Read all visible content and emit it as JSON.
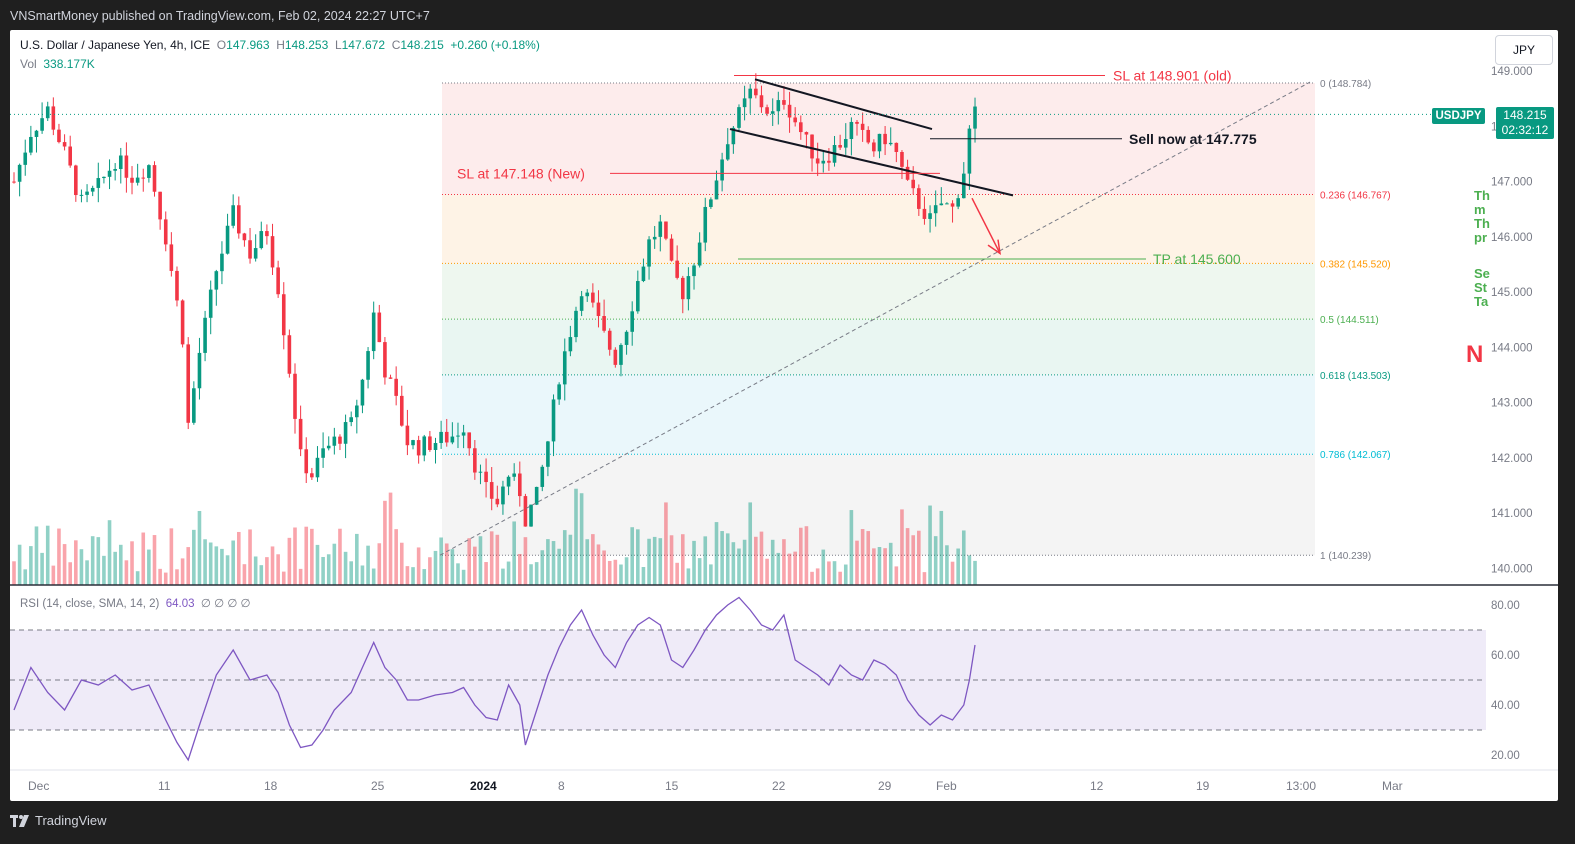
{
  "header": {
    "published": "VNSmartMoney published on TradingView.com, Feb 02, 2024 22:27 UTC+7"
  },
  "footer": {
    "brand": "TradingView"
  },
  "legend": {
    "symbol": "U.S. Dollar / Japanese Yen, 4h, ICE",
    "o_label": "O",
    "o": "147.963",
    "h_label": "H",
    "h": "148.253",
    "l_label": "L",
    "l": "147.672",
    "c_label": "C",
    "c": "148.215",
    "change": "+0.260 (+0.18%)",
    "vol_label": "Vol",
    "vol": "338.177K"
  },
  "currency_button": "JPY",
  "last_price": {
    "symbol": "USDJPY",
    "price": "148.215",
    "countdown": "02:32:12"
  },
  "rsi_legend": {
    "label": "RSI (14, close, SMA, 14, 2)",
    "value": "64.03",
    "extras": "∅  ∅  ∅  ∅"
  },
  "colors": {
    "up": "#089981",
    "down": "#f23645",
    "rsi": "#7e57c2",
    "annotation_red": "#f23645",
    "annotation_green": "#4caf50"
  },
  "annotations": {
    "sl_old": "SL at 148.901 (old)",
    "sl_new": "SL at 147.148 (New)",
    "sell": "Sell now at 147.775",
    "tp": "TP at 145.600",
    "right_note_lines": [
      "Th",
      "m",
      "Th",
      "pr",
      "Se",
      "St",
      "Ta"
    ],
    "right_big": "N"
  },
  "chart_data": {
    "type": "candlestick",
    "ylim": [
      139.7,
      149.2
    ],
    "y_ticks": [
      "149.000",
      "148.000",
      "147.000",
      "146.000",
      "145.000",
      "144.000",
      "143.000",
      "142.000",
      "141.000",
      "140.000"
    ],
    "x_ticks": [
      "Dec",
      "11",
      "18",
      "25",
      "2024",
      "8",
      "15",
      "22",
      "29",
      "Feb",
      "12",
      "19",
      "13:00",
      "Mar"
    ],
    "fib_levels": [
      {
        "ratio": "0",
        "label": "0 (148.784)",
        "price": 148.784,
        "color": "#787b86",
        "fill": "#fdecec"
      },
      {
        "ratio": "0.236",
        "label": "0.236 (146.767)",
        "price": 146.767,
        "color": "#f23645",
        "fill": "#fef3e6"
      },
      {
        "ratio": "0.382",
        "label": "0.382 (145.520)",
        "price": 145.52,
        "color": "#ff9800",
        "fill": "#eef7ef"
      },
      {
        "ratio": "0.5",
        "label": "0.5 (144.511)",
        "price": 144.511,
        "color": "#4caf50",
        "fill": "#e9f6f2"
      },
      {
        "ratio": "0.618",
        "label": "0.618 (143.503)",
        "price": 143.503,
        "color": "#089981",
        "fill": "#eaf7fb"
      },
      {
        "ratio": "0.786",
        "label": "0.786 (142.067)",
        "price": 142.067,
        "color": "#00bcd4",
        "fill": "#f4f4f4"
      },
      {
        "ratio": "1",
        "label": "1 (140.239)",
        "price": 140.239,
        "color": "#787b86",
        "fill": null
      }
    ],
    "close_path": [
      [
        0,
        147.0
      ],
      [
        3,
        147.9
      ],
      [
        6,
        148.3
      ],
      [
        9,
        147.5
      ],
      [
        12,
        146.6
      ],
      [
        15,
        146.9
      ],
      [
        18,
        147.4
      ],
      [
        21,
        147.1
      ],
      [
        24,
        147.3
      ],
      [
        27,
        146.0
      ],
      [
        30,
        144.2
      ],
      [
        31,
        142.6
      ],
      [
        33,
        143.9
      ],
      [
        36,
        145.4
      ],
      [
        39,
        146.4
      ],
      [
        42,
        145.7
      ],
      [
        45,
        146.1
      ],
      [
        47,
        145.1
      ],
      [
        49,
        143.6
      ],
      [
        51,
        142.0
      ],
      [
        53,
        141.7
      ],
      [
        55,
        142.1
      ],
      [
        57,
        142.3
      ],
      [
        60,
        142.6
      ],
      [
        62,
        143.4
      ],
      [
        64,
        144.6
      ],
      [
        66,
        143.6
      ],
      [
        68,
        143.0
      ],
      [
        70,
        142.3
      ],
      [
        72,
        142.2
      ],
      [
        75,
        142.3
      ],
      [
        78,
        142.4
      ],
      [
        80,
        142.6
      ],
      [
        82,
        141.9
      ],
      [
        84,
        141.4
      ],
      [
        86,
        141.2
      ],
      [
        88,
        141.7
      ],
      [
        90,
        141.4
      ],
      [
        91,
        140.9
      ],
      [
        93,
        141.3
      ],
      [
        95,
        142.3
      ],
      [
        97,
        143.5
      ],
      [
        99,
        144.3
      ],
      [
        101,
        145.1
      ],
      [
        103,
        144.7
      ],
      [
        105,
        144.2
      ],
      [
        107,
        143.8
      ],
      [
        109,
        144.4
      ],
      [
        111,
        145.2
      ],
      [
        113,
        145.9
      ],
      [
        115,
        146.2
      ],
      [
        117,
        145.4
      ],
      [
        119,
        145.0
      ],
      [
        121,
        145.6
      ],
      [
        123,
        146.4
      ],
      [
        125,
        147.1
      ],
      [
        127,
        147.8
      ],
      [
        129,
        148.2
      ],
      [
        131,
        148.6
      ],
      [
        133,
        148.4
      ],
      [
        135,
        148.2
      ],
      [
        137,
        148.5
      ],
      [
        139,
        148.1
      ],
      [
        141,
        147.7
      ],
      [
        143,
        147.4
      ],
      [
        145,
        147.5
      ],
      [
        147,
        147.7
      ],
      [
        149,
        148.0
      ],
      [
        151,
        147.8
      ],
      [
        153,
        147.6
      ],
      [
        155,
        147.8
      ],
      [
        157,
        147.5
      ],
      [
        159,
        146.9
      ],
      [
        161,
        146.6
      ],
      [
        163,
        146.3
      ],
      [
        165,
        146.6
      ],
      [
        167,
        146.5
      ],
      [
        169,
        147.2
      ],
      [
        170,
        147.9
      ],
      [
        171,
        148.215
      ]
    ],
    "rsi_ylim": [
      14,
      86
    ],
    "rsi_ticks": [
      "80.00",
      "60.00",
      "40.00",
      "20.00"
    ],
    "rsi_band": [
      30,
      70
    ],
    "rsi_path": [
      [
        0,
        38
      ],
      [
        3,
        55
      ],
      [
        6,
        45
      ],
      [
        9,
        38
      ],
      [
        12,
        50
      ],
      [
        15,
        48
      ],
      [
        18,
        52
      ],
      [
        21,
        46
      ],
      [
        24,
        48
      ],
      [
        27,
        34
      ],
      [
        29,
        25
      ],
      [
        31,
        18
      ],
      [
        33,
        32
      ],
      [
        36,
        52
      ],
      [
        39,
        62
      ],
      [
        42,
        50
      ],
      [
        45,
        52
      ],
      [
        47,
        45
      ],
      [
        49,
        32
      ],
      [
        51,
        23
      ],
      [
        53,
        24
      ],
      [
        55,
        30
      ],
      [
        57,
        38
      ],
      [
        60,
        45
      ],
      [
        62,
        55
      ],
      [
        64,
        65
      ],
      [
        66,
        55
      ],
      [
        68,
        50
      ],
      [
        70,
        42
      ],
      [
        72,
        42
      ],
      [
        75,
        44
      ],
      [
        78,
        45
      ],
      [
        80,
        47
      ],
      [
        82,
        40
      ],
      [
        84,
        35
      ],
      [
        86,
        34
      ],
      [
        88,
        48
      ],
      [
        90,
        40
      ],
      [
        91,
        24
      ],
      [
        93,
        38
      ],
      [
        95,
        52
      ],
      [
        97,
        63
      ],
      [
        99,
        72
      ],
      [
        101,
        78
      ],
      [
        103,
        68
      ],
      [
        105,
        60
      ],
      [
        107,
        55
      ],
      [
        109,
        65
      ],
      [
        111,
        72
      ],
      [
        113,
        75
      ],
      [
        115,
        72
      ],
      [
        117,
        58
      ],
      [
        119,
        55
      ],
      [
        121,
        62
      ],
      [
        123,
        70
      ],
      [
        125,
        76
      ],
      [
        127,
        80
      ],
      [
        129,
        83
      ],
      [
        131,
        78
      ],
      [
        133,
        72
      ],
      [
        135,
        70
      ],
      [
        137,
        76
      ],
      [
        139,
        58
      ],
      [
        141,
        55
      ],
      [
        143,
        52
      ],
      [
        145,
        48
      ],
      [
        147,
        56
      ],
      [
        149,
        52
      ],
      [
        151,
        50
      ],
      [
        153,
        58
      ],
      [
        155,
        56
      ],
      [
        157,
        52
      ],
      [
        159,
        42
      ],
      [
        161,
        36
      ],
      [
        163,
        32
      ],
      [
        165,
        36
      ],
      [
        167,
        34
      ],
      [
        169,
        40
      ],
      [
        170,
        50
      ],
      [
        171,
        64
      ]
    ]
  }
}
